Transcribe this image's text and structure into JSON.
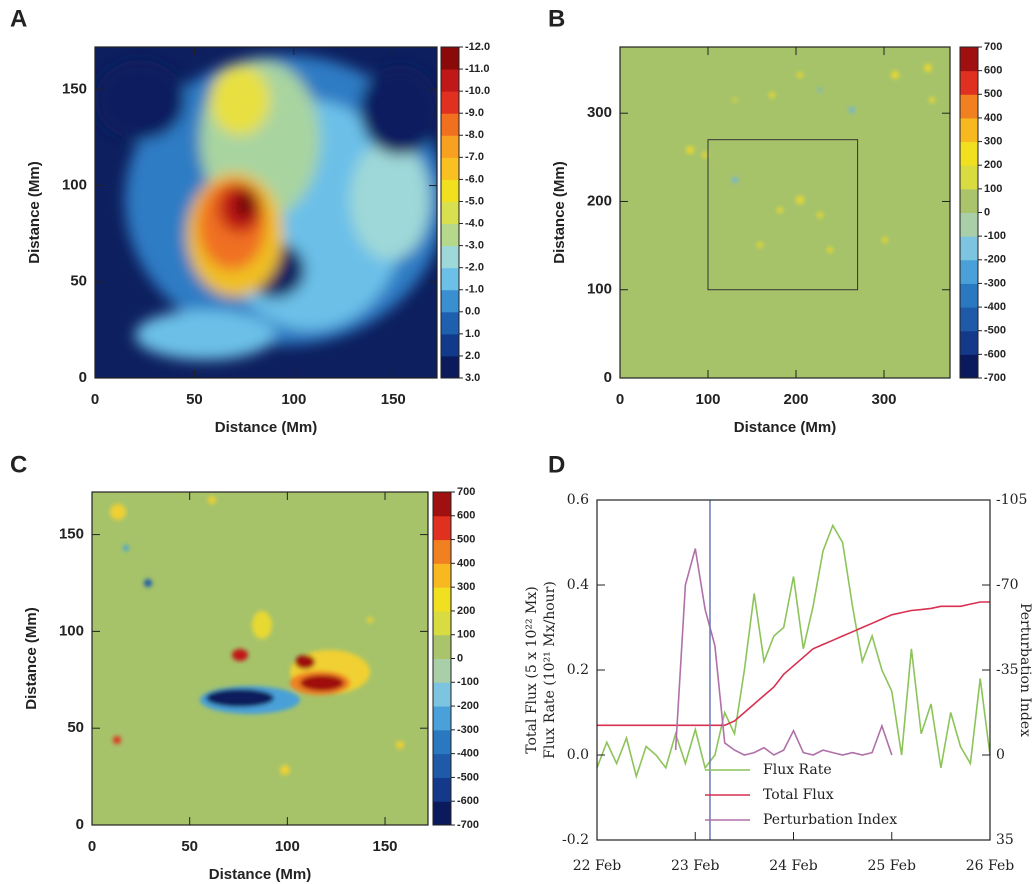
{
  "chart_data": [
    {
      "type": "heatmap",
      "label": "A",
      "xlabel": "Distance (Mm)",
      "ylabel": "Distance (Mm)",
      "xlim": [
        0,
        172
      ],
      "xticks": [
        0,
        50,
        100,
        150
      ],
      "ylim": [
        0,
        172
      ],
      "yticks": [
        0,
        50,
        100,
        150
      ],
      "colorbar": {
        "clim": [
          3,
          -12
        ],
        "ticks": [
          {
            "value": -12,
            "label": "-12.0"
          },
          {
            "value": -11,
            "label": "-11.0"
          },
          {
            "value": -10,
            "label": "-10.0"
          },
          {
            "value": -9,
            "label": "-9.0"
          },
          {
            "value": -8,
            "label": "-8.0"
          },
          {
            "value": -7,
            "label": "-7.0"
          },
          {
            "value": -6,
            "label": "-6.0"
          },
          {
            "value": -5,
            "label": "-5.0"
          },
          {
            "value": -4,
            "label": "-4.0"
          },
          {
            "value": -3,
            "label": "-3.0"
          },
          {
            "value": -2,
            "label": "-2.0"
          },
          {
            "value": -1,
            "label": "-1.0"
          },
          {
            "value": 0,
            "label": "0.0"
          },
          {
            "value": 1,
            "label": "1.0"
          },
          {
            "value": 2,
            "label": "2.0"
          },
          {
            "value": 3,
            "label": "3.0"
          }
        ],
        "colors": [
          "#0a1a5c",
          "#123a8a",
          "#1f5fb0",
          "#3a8fd0",
          "#6cc0e8",
          "#9fd8d8",
          "#b5d88a",
          "#d8e050",
          "#f0e020",
          "#f8c020",
          "#f8a020",
          "#f07020",
          "#e03020",
          "#c01818",
          "#8a0a0a"
        ]
      }
    },
    {
      "type": "heatmap",
      "label": "B",
      "xlabel": "Distance (Mm)",
      "ylabel": "Distance (Mm)",
      "xlim": [
        0,
        375
      ],
      "xticks": [
        0,
        100,
        200,
        300
      ],
      "ylim": [
        0,
        375
      ],
      "yticks": [
        0,
        100,
        200,
        300
      ],
      "box": {
        "x": [
          100,
          270
        ],
        "y": [
          100,
          270
        ]
      },
      "colorbar": {
        "clim": [
          -700,
          700
        ],
        "ticks": [
          -700,
          -600,
          -500,
          -400,
          -300,
          -200,
          -100,
          0,
          100,
          200,
          300,
          400,
          500,
          600,
          700
        ],
        "colors": [
          "#0a1a5c",
          "#15398a",
          "#1e5aa8",
          "#2a78c0",
          "#4aa0d8",
          "#7cc4e0",
          "#a8cfa8",
          "#a9c46a",
          "#d8dc40",
          "#f0e020",
          "#f8b820",
          "#f08020",
          "#e03020",
          "#a01010"
        ]
      }
    },
    {
      "type": "heatmap",
      "label": "C",
      "xlabel": "Distance (Mm)",
      "ylabel": "Distance (Mm)",
      "xlim": [
        0,
        172
      ],
      "xticks": [
        0,
        50,
        100,
        150
      ],
      "ylim": [
        0,
        172
      ],
      "yticks": [
        0,
        50,
        100,
        150
      ],
      "colorbar": {
        "clim": [
          -700,
          700
        ],
        "ticks": [
          -700,
          -600,
          -500,
          -400,
          -300,
          -200,
          -100,
          0,
          100,
          200,
          300,
          400,
          500,
          600,
          700
        ],
        "colors": [
          "#0a1a5c",
          "#15398a",
          "#1e5aa8",
          "#2a78c0",
          "#4aa0d8",
          "#7cc4e0",
          "#a8cfa8",
          "#a9c46a",
          "#d8dc40",
          "#f0e020",
          "#f8b820",
          "#f08020",
          "#e03020",
          "#a01010"
        ]
      }
    },
    {
      "type": "line",
      "label": "D",
      "ylabel": [
        "Total Flux (5 x 10²² Mx)",
        "Flux Rate (10²¹ Mx/hour)"
      ],
      "y2label": "Perturbation Index",
      "x": [
        22.0,
        22.1,
        22.2,
        22.3,
        22.4,
        22.5,
        22.6,
        22.7,
        22.8,
        22.9,
        23.0,
        23.1,
        23.2,
        23.3,
        23.4,
        23.5,
        23.6,
        23.7,
        23.8,
        23.9,
        24.0,
        24.1,
        24.2,
        24.3,
        24.4,
        24.5,
        24.6,
        24.7,
        24.8,
        24.9,
        25.0,
        25.1,
        25.2,
        25.3,
        25.4,
        25.5,
        25.6,
        25.7,
        25.8,
        25.9,
        26.0
      ],
      "xlim": [
        22,
        26
      ],
      "xticks": [
        {
          "value": 22,
          "label": "22 Feb"
        },
        {
          "value": 23,
          "label": "23 Feb"
        },
        {
          "value": 24,
          "label": "24 Feb"
        },
        {
          "value": 25,
          "label": "25 Feb"
        },
        {
          "value": 26,
          "label": "26 Feb"
        }
      ],
      "ylim": [
        -0.2,
        0.6
      ],
      "yticks": [
        -0.2,
        {
          "value": 0,
          "label": "0.0"
        },
        0.2,
        0.4,
        0.6
      ],
      "y2lim": [
        35,
        -105
      ],
      "y2ticks": [
        35,
        0,
        -35,
        -70,
        -105
      ],
      "vline": {
        "x": 23.15,
        "color": "#6a78b8"
      },
      "legend": "lower right",
      "series": [
        {
          "name": "Flux Rate",
          "color": "#8cc45a",
          "values": [
            -0.03,
            0.03,
            -0.02,
            0.04,
            -0.05,
            0.02,
            0,
            -0.03,
            0.05,
            -0.02,
            0.06,
            -0.03,
            0,
            0.1,
            0.05,
            0.2,
            0.38,
            0.22,
            0.28,
            0.3,
            0.42,
            0.25,
            0.35,
            0.48,
            0.54,
            0.5,
            0.35,
            0.22,
            0.28,
            0.2,
            0.15,
            0,
            0.25,
            0.05,
            0.12,
            -0.03,
            0.1,
            0.02,
            -0.02,
            0.18,
            0
          ]
        },
        {
          "name": "Total Flux",
          "color": "#d83050",
          "values": [
            0.07,
            0.07,
            0.07,
            0.07,
            0.07,
            0.07,
            0.07,
            0.07,
            0.07,
            0.07,
            0.07,
            0.07,
            0.07,
            0.07,
            0.08,
            0.1,
            0.12,
            0.14,
            0.16,
            0.19,
            0.21,
            0.23,
            0.25,
            0.26,
            0.27,
            0.28,
            0.29,
            0.3,
            0.31,
            0.32,
            0.33,
            0.335,
            0.34,
            0.342,
            0.345,
            0.35,
            0.35,
            0.35,
            0.355,
            0.36,
            0.36
          ]
        },
        {
          "name": "Perturbation Index",
          "color": "#b070a8",
          "axis": "y2",
          "values": [
            null,
            null,
            null,
            null,
            null,
            null,
            null,
            null,
            -2,
            -70,
            -85,
            -60,
            -45,
            -5,
            -2,
            0,
            -1,
            -3,
            0,
            -2,
            -10,
            -1,
            0,
            -2,
            -1,
            0,
            -1,
            0,
            -1,
            -12,
            0,
            null,
            null,
            null,
            null,
            null,
            null,
            null,
            null,
            null,
            null
          ]
        }
      ]
    }
  ]
}
